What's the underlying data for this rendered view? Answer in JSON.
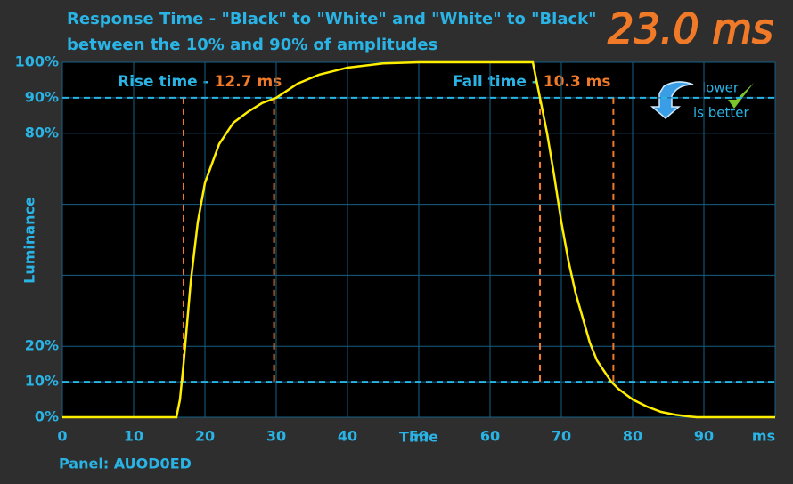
{
  "chart_data": {
    "type": "line",
    "title": "Response Time - \"Black\" to \"White\" and \"White\" to \"Black\"",
    "subtitle": "between the 10% and 90% of amplitudes",
    "headline": "23.0 ms",
    "rise_label": "Rise time - ",
    "rise_value": "12.7 ms",
    "fall_label": "Fall time - ",
    "fall_value": "10.3 ms",
    "badge": [
      "lower",
      "is better"
    ],
    "ylabel": "Luminance",
    "xlabel": "Time",
    "xunit": "ms",
    "footer": "Panel: AUOD0ED",
    "color": "#ffee00",
    "marker_color": "#f07a28",
    "grid": true,
    "xlim": [
      0,
      100
    ],
    "ylim": [
      0,
      100
    ],
    "xticks": [
      0,
      10,
      20,
      30,
      40,
      50,
      60,
      70,
      80,
      90
    ],
    "yticks": [
      {
        "value": 0,
        "label": "0%"
      },
      {
        "value": 10,
        "label": "10%"
      },
      {
        "value": 20,
        "label": "20%"
      },
      {
        "value": 40,
        "label": null
      },
      {
        "value": 60,
        "label": null
      },
      {
        "value": 80,
        "label": "80%"
      },
      {
        "value": 90,
        "label": "90%"
      },
      {
        "value": 100,
        "label": "100%"
      }
    ],
    "reference_lines": [
      10,
      90
    ],
    "markers": [
      17,
      29.7,
      67,
      77.3
    ],
    "x": [
      0,
      16,
      16.5,
      17,
      18,
      19,
      20,
      22,
      24,
      26,
      28,
      30,
      33,
      36,
      40,
      45,
      50,
      66,
      66.3,
      67,
      68,
      69,
      70,
      71,
      72,
      73,
      74,
      75,
      76,
      77,
      78,
      80,
      82,
      84,
      86,
      88,
      89,
      100
    ],
    "values": [
      0,
      0,
      5,
      15,
      38,
      55,
      66,
      77,
      83,
      86,
      88.5,
      90,
      94,
      96.5,
      98.5,
      99.7,
      100,
      100,
      97,
      90,
      80,
      68,
      55,
      44,
      35,
      28,
      21,
      16,
      13,
      10,
      8,
      5,
      3,
      1.5,
      0.7,
      0.2,
      0,
      0
    ]
  }
}
